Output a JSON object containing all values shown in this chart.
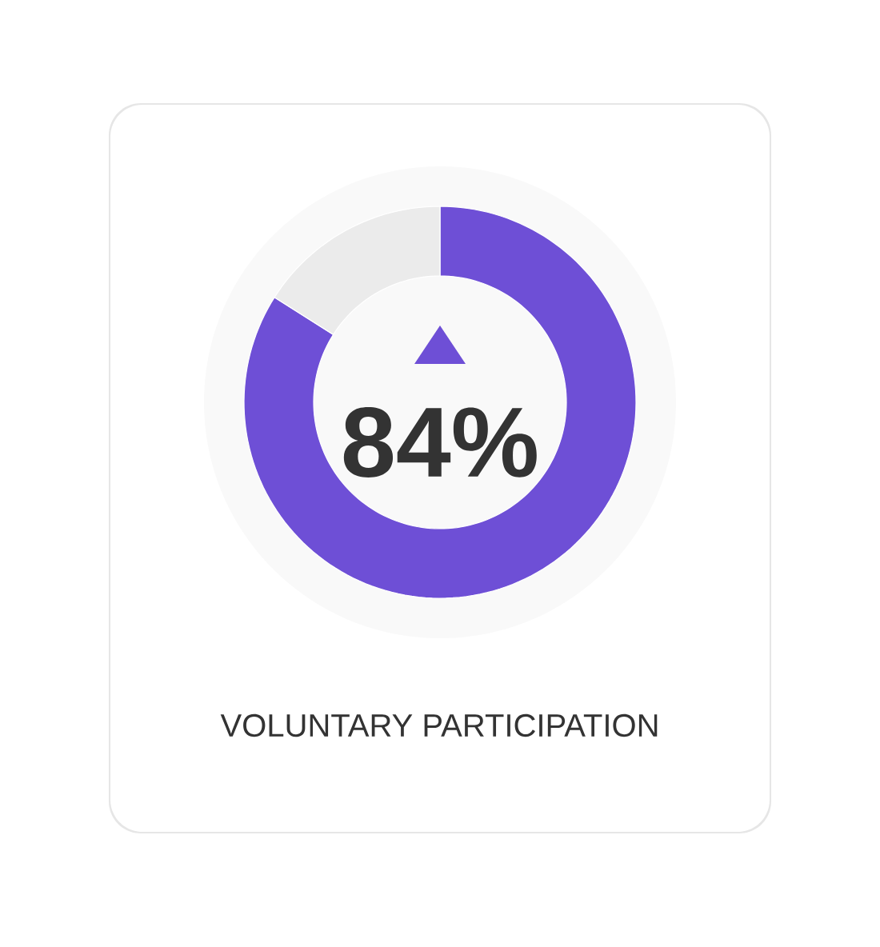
{
  "chart_data": {
    "type": "donut",
    "title": "VOLUNTARY PARTICIPATION",
    "categories": [
      null,
      null
    ],
    "values": [
      84,
      16
    ],
    "colors": [
      "#6e4fd6",
      "#ebebeb"
    ],
    "value_labels": [
      "84%",
      null
    ]
  }
}
